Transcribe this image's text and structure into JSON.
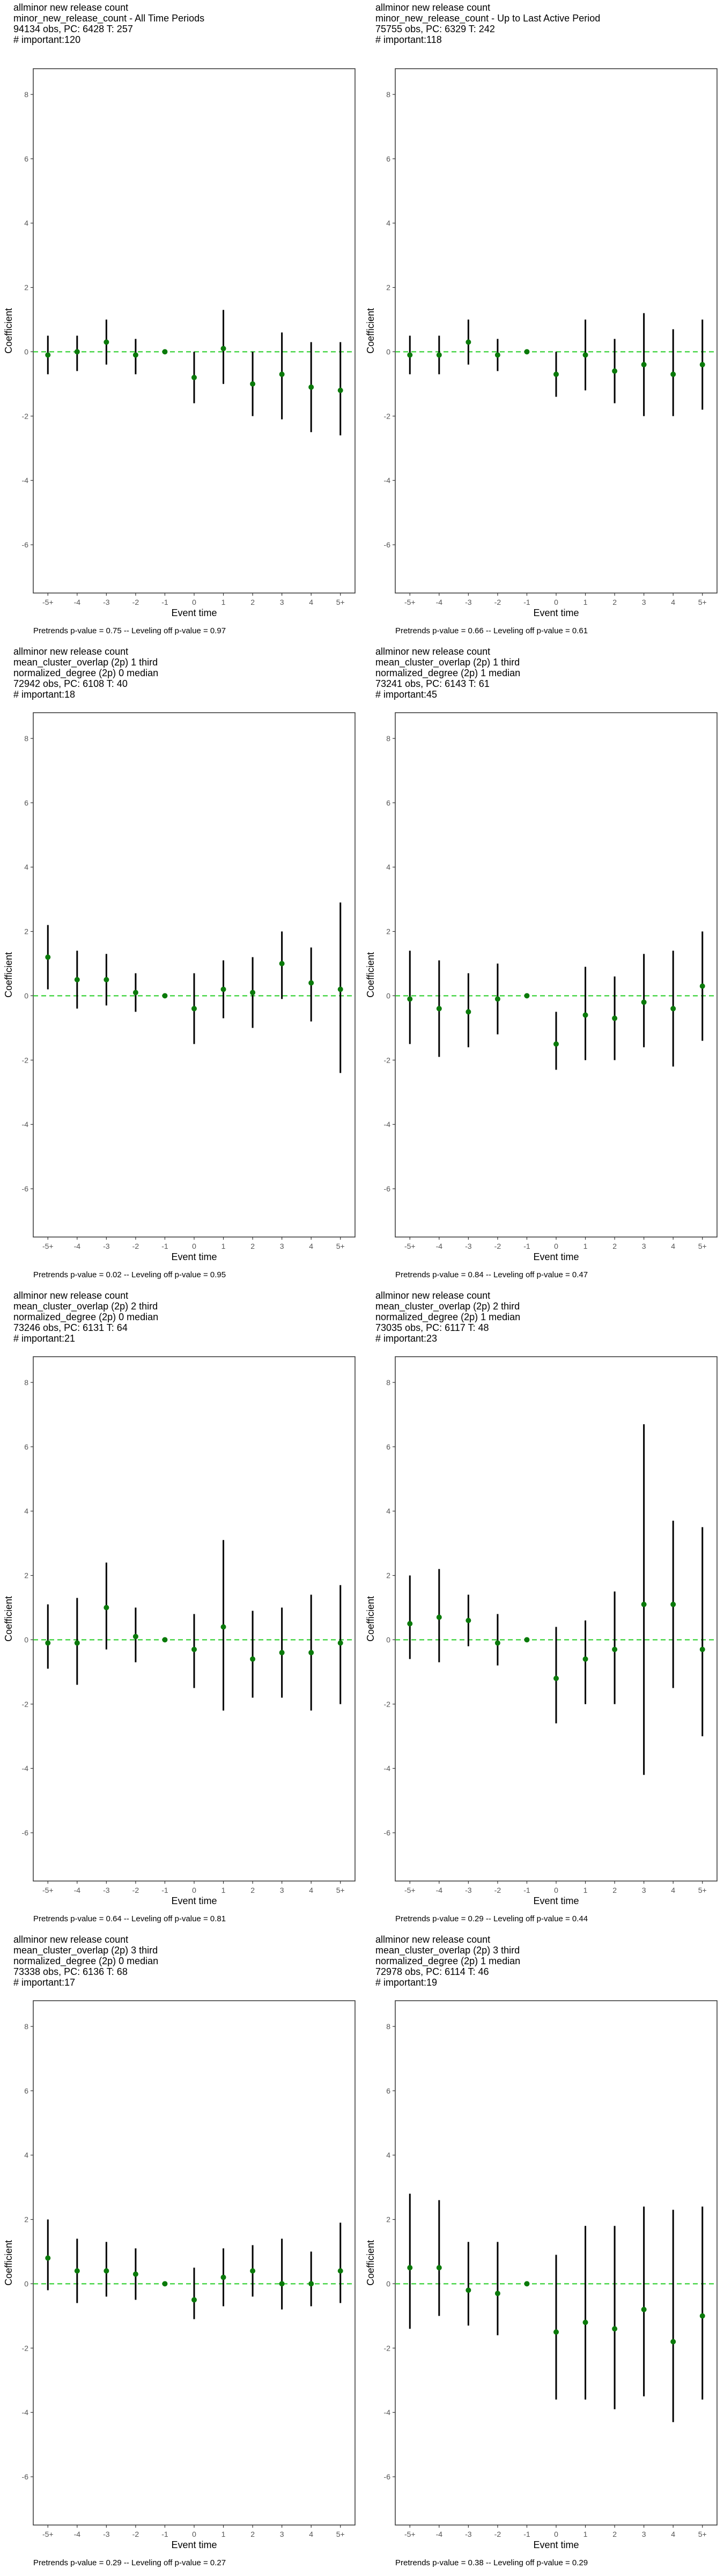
{
  "figure": {
    "panel_columns": 2,
    "tick_labels_x": [
      "-5+",
      "-4",
      "-3",
      "-2",
      "-1",
      "0",
      "1",
      "2",
      "3",
      "4",
      "5+"
    ],
    "tick_labels_y": [
      "-6",
      "-4",
      "-2",
      "0",
      "2",
      "4",
      "6",
      "8"
    ],
    "xlabel": "Event time",
    "ylabel": "Coefficient",
    "colors": {
      "point": "#0a7a0a",
      "reference_line": "#22cc22",
      "errorbar": "#000000",
      "axis": "#333333"
    }
  },
  "chart_data": [
    {
      "type": "scatter",
      "title": " allminor new release count\nminor_new_release_count - All Time Periods\n94134 obs, PC: 6428 T: 257\n# important:120",
      "xlabel": "Event time",
      "ylabel": "Coefficient",
      "ylim": [
        -7.5,
        8.8
      ],
      "grid": false,
      "footer": "Pretrends p-value = 0.75 -- Leveling off p-value = 0.97",
      "x": [
        "-5+",
        "-4",
        "-3",
        "-2",
        "-1",
        "0",
        "1",
        "2",
        "3",
        "4",
        "5+"
      ],
      "series": [
        {
          "values": [
            -0.1,
            0.0,
            0.3,
            -0.1,
            0.0,
            -0.8,
            0.1,
            -1.0,
            -0.7,
            -1.1,
            -1.2
          ],
          "ci_low": [
            -0.7,
            -0.6,
            -0.4,
            -0.7,
            0.0,
            -1.6,
            -1.0,
            -2.0,
            -2.1,
            -2.5,
            -2.6
          ],
          "ci_high": [
            0.5,
            0.5,
            1.0,
            0.4,
            0.0,
            0.0,
            1.3,
            0.0,
            0.6,
            0.3,
            0.3
          ]
        }
      ]
    },
    {
      "type": "scatter",
      "title": " allminor new release count\nminor_new_release_count - Up to Last Active Period\n75755 obs, PC: 6329 T: 242\n# important:118",
      "xlabel": "Event time",
      "ylabel": "Coefficient",
      "ylim": [
        -7.5,
        8.8
      ],
      "grid": false,
      "footer": "Pretrends p-value = 0.66 -- Leveling off p-value = 0.61",
      "x": [
        "-5+",
        "-4",
        "-3",
        "-2",
        "-1",
        "0",
        "1",
        "2",
        "3",
        "4",
        "5+"
      ],
      "series": [
        {
          "values": [
            -0.1,
            -0.1,
            0.3,
            -0.1,
            0.0,
            -0.7,
            -0.1,
            -0.6,
            -0.4,
            -0.7,
            -0.4
          ],
          "ci_low": [
            -0.7,
            -0.7,
            -0.4,
            -0.6,
            0.0,
            -1.4,
            -1.2,
            -1.6,
            -2.0,
            -2.0,
            -1.8
          ],
          "ci_high": [
            0.5,
            0.5,
            1.0,
            0.4,
            0.0,
            0.0,
            1.0,
            0.4,
            1.2,
            0.7,
            1.0
          ]
        }
      ]
    },
    {
      "type": "scatter",
      "title": " allminor new release count\nmean_cluster_overlap (2p) 1 third\nnormalized_degree (2p) 0 median\n72942 obs, PC: 6108 T: 40\n# important:18",
      "xlabel": "Event time",
      "ylabel": "Coefficient",
      "ylim": [
        -7.5,
        8.8
      ],
      "grid": false,
      "footer": "Pretrends p-value = 0.02 -- Leveling off p-value = 0.95",
      "x": [
        "-5+",
        "-4",
        "-3",
        "-2",
        "-1",
        "0",
        "1",
        "2",
        "3",
        "4",
        "5+"
      ],
      "series": [
        {
          "values": [
            1.2,
            0.5,
            0.5,
            0.1,
            0.0,
            -0.4,
            0.2,
            0.1,
            1.0,
            0.4,
            0.2
          ],
          "ci_low": [
            0.2,
            -0.4,
            -0.3,
            -0.5,
            0.0,
            -1.5,
            -0.7,
            -1.0,
            -0.1,
            -0.8,
            -2.4
          ],
          "ci_high": [
            2.2,
            1.4,
            1.3,
            0.7,
            0.0,
            0.7,
            1.1,
            1.2,
            2.0,
            1.5,
            2.9
          ]
        }
      ]
    },
    {
      "type": "scatter",
      "title": " allminor new release count\nmean_cluster_overlap (2p) 1 third\nnormalized_degree (2p) 1 median\n73241 obs, PC: 6143 T: 61\n# important:45",
      "xlabel": "Event time",
      "ylabel": "Coefficient",
      "ylim": [
        -7.5,
        8.8
      ],
      "grid": false,
      "footer": "Pretrends p-value = 0.84 -- Leveling off p-value = 0.47",
      "x": [
        "-5+",
        "-4",
        "-3",
        "-2",
        "-1",
        "0",
        "1",
        "2",
        "3",
        "4",
        "5+"
      ],
      "series": [
        {
          "values": [
            -0.1,
            -0.4,
            -0.5,
            -0.1,
            0.0,
            -1.5,
            -0.6,
            -0.7,
            -0.2,
            -0.4,
            0.3
          ],
          "ci_low": [
            -1.5,
            -1.9,
            -1.6,
            -1.2,
            0.0,
            -2.3,
            -2.0,
            -2.0,
            -1.6,
            -2.2,
            -1.4
          ],
          "ci_high": [
            1.4,
            1.1,
            0.7,
            1.0,
            0.0,
            -0.5,
            0.9,
            0.6,
            1.3,
            1.4,
            2.0
          ]
        }
      ]
    },
    {
      "type": "scatter",
      "title": " allminor new release count\nmean_cluster_overlap (2p) 2 third\nnormalized_degree (2p) 0 median\n73246 obs, PC: 6131 T: 64\n# important:21",
      "xlabel": "Event time",
      "ylabel": "Coefficient",
      "ylim": [
        -7.5,
        8.8
      ],
      "grid": false,
      "footer": "Pretrends p-value = 0.64 -- Leveling off p-value = 0.81",
      "x": [
        "-5+",
        "-4",
        "-3",
        "-2",
        "-1",
        "0",
        "1",
        "2",
        "3",
        "4",
        "5+"
      ],
      "series": [
        {
          "values": [
            -0.1,
            -0.1,
            1.0,
            0.1,
            0.0,
            -0.3,
            0.4,
            -0.6,
            -0.4,
            -0.4,
            -0.1
          ],
          "ci_low": [
            -0.9,
            -1.4,
            -0.3,
            -0.7,
            0.0,
            -1.5,
            -2.2,
            -1.8,
            -1.8,
            -2.2,
            -2.0
          ],
          "ci_high": [
            1.1,
            1.3,
            2.4,
            1.0,
            0.0,
            0.8,
            3.1,
            0.9,
            1.0,
            1.4,
            1.7
          ]
        }
      ]
    },
    {
      "type": "scatter",
      "title": " allminor new release count\nmean_cluster_overlap (2p) 2 third\nnormalized_degree (2p) 1 median\n73035 obs, PC: 6117 T: 48\n# important:23",
      "xlabel": "Event time",
      "ylabel": "Coefficient",
      "ylim": [
        -7.5,
        8.8
      ],
      "grid": false,
      "footer": "Pretrends p-value = 0.29 -- Leveling off p-value = 0.44",
      "x": [
        "-5+",
        "-4",
        "-3",
        "-2",
        "-1",
        "0",
        "1",
        "2",
        "3",
        "4",
        "5+"
      ],
      "series": [
        {
          "values": [
            0.5,
            0.7,
            0.6,
            -0.1,
            0.0,
            -1.2,
            -0.6,
            -0.3,
            1.1,
            1.1,
            -0.3
          ],
          "ci_low": [
            -0.6,
            -0.7,
            -0.2,
            -0.8,
            0.0,
            -2.6,
            -2.0,
            -2.0,
            -4.2,
            -1.5,
            -3.0
          ],
          "ci_high": [
            2.0,
            2.2,
            1.4,
            0.8,
            0.0,
            0.4,
            0.6,
            1.5,
            6.7,
            3.7,
            3.5
          ]
        }
      ]
    },
    {
      "type": "scatter",
      "title": " allminor new release count\nmean_cluster_overlap (2p) 3 third\nnormalized_degree (2p) 0 median\n73338 obs, PC: 6136 T: 68\n# important:17",
      "xlabel": "Event time",
      "ylabel": "Coefficient",
      "ylim": [
        -7.5,
        8.8
      ],
      "grid": false,
      "footer": "Pretrends p-value = 0.29 -- Leveling off p-value = 0.27",
      "x": [
        "-5+",
        "-4",
        "-3",
        "-2",
        "-1",
        "0",
        "1",
        "2",
        "3",
        "4",
        "5+"
      ],
      "series": [
        {
          "values": [
            0.8,
            0.4,
            0.4,
            0.3,
            0.0,
            -0.5,
            0.2,
            0.4,
            0.0,
            0.0,
            0.4
          ],
          "ci_low": [
            -0.2,
            -0.6,
            -0.4,
            -0.5,
            0.0,
            -1.1,
            -0.7,
            -0.4,
            -0.8,
            -0.7,
            -0.6
          ],
          "ci_high": [
            2.0,
            1.4,
            1.3,
            1.1,
            0.0,
            0.5,
            1.1,
            1.2,
            1.4,
            1.0,
            1.9
          ]
        }
      ]
    },
    {
      "type": "scatter",
      "title": " allminor new release count\nmean_cluster_overlap (2p) 3 third\nnormalized_degree (2p) 1 median\n72978 obs, PC: 6114 T: 46\n# important:19",
      "xlabel": "Event time",
      "ylabel": "Coefficient",
      "ylim": [
        -7.5,
        8.8
      ],
      "grid": false,
      "footer": "Pretrends p-value = 0.38 -- Leveling off p-value = 0.29",
      "x": [
        "-5+",
        "-4",
        "-3",
        "-2",
        "-1",
        "0",
        "1",
        "2",
        "3",
        "4",
        "5+"
      ],
      "series": [
        {
          "values": [
            0.5,
            0.5,
            -0.2,
            -0.3,
            0.0,
            -1.5,
            -1.2,
            -1.4,
            -0.8,
            -1.8,
            -1.0
          ],
          "ci_low": [
            -1.4,
            -1.0,
            -1.3,
            -1.6,
            0.0,
            -3.6,
            -3.6,
            -3.9,
            -3.5,
            -4.3,
            -3.6
          ],
          "ci_high": [
            2.8,
            2.6,
            1.3,
            1.3,
            0.0,
            0.9,
            1.8,
            1.8,
            2.4,
            2.3,
            2.4
          ]
        }
      ]
    }
  ]
}
